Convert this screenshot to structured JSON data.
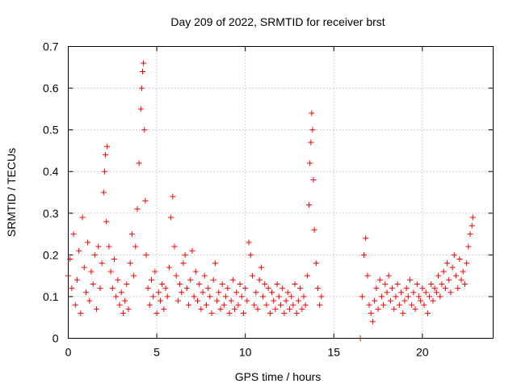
{
  "chart_data": {
    "type": "scatter",
    "title": "Day 209 of 2022, SRMTID for receiver brst",
    "xlabel": "GPS time / hours",
    "ylabel": "SRMTID / TECUs",
    "xlim": [
      0,
      24
    ],
    "ylim": [
      0,
      0.7
    ],
    "x_ticks": [
      0,
      5,
      10,
      15,
      20
    ],
    "x_tick_labels": [
      "0",
      "5",
      "10",
      "15",
      "20"
    ],
    "y_ticks": [
      0,
      0.1,
      0.2,
      0.3,
      0.4,
      0.5,
      0.6,
      0.7
    ],
    "y_tick_labels": [
      "0",
      "0.1",
      "0.2",
      "0.3",
      "0.4",
      "0.5",
      "0.6",
      "0.7"
    ],
    "grid": true,
    "marker": "plus",
    "color": "#ff0000",
    "series": [
      {
        "name": "SRMTID",
        "x": [
          0.0,
          0.1,
          0.2,
          0.3,
          0.4,
          0.5,
          0.6,
          0.7,
          0.8,
          0.9,
          1.0,
          1.1,
          1.2,
          1.3,
          1.4,
          1.5,
          1.6,
          1.7,
          1.8,
          1.9,
          2.0,
          2.05,
          2.1,
          2.15,
          2.2,
          2.3,
          2.4,
          2.5,
          2.6,
          2.7,
          2.8,
          2.9,
          3.0,
          3.1,
          3.2,
          3.3,
          3.4,
          3.5,
          3.6,
          3.7,
          3.8,
          3.9,
          4.0,
          4.1,
          4.15,
          4.2,
          4.25,
          4.3,
          4.35,
          4.4,
          4.5,
          4.6,
          4.7,
          4.8,
          4.9,
          5.0,
          5.1,
          5.2,
          5.3,
          5.4,
          5.5,
          5.6,
          5.7,
          5.8,
          5.9,
          6.0,
          6.1,
          6.2,
          6.3,
          6.4,
          6.5,
          6.6,
          6.7,
          6.8,
          6.9,
          7.0,
          7.1,
          7.2,
          7.3,
          7.4,
          7.5,
          7.6,
          7.7,
          7.8,
          7.9,
          8.0,
          8.1,
          8.2,
          8.3,
          8.4,
          8.5,
          8.6,
          8.7,
          8.8,
          8.9,
          9.0,
          9.1,
          9.2,
          9.3,
          9.4,
          9.5,
          9.6,
          9.7,
          9.8,
          9.9,
          10.0,
          10.1,
          10.2,
          10.3,
          10.4,
          10.5,
          10.6,
          10.7,
          10.8,
          10.9,
          11.0,
          11.1,
          11.2,
          11.3,
          11.4,
          11.5,
          11.6,
          11.7,
          11.8,
          11.9,
          12.0,
          12.1,
          12.2,
          12.3,
          12.4,
          12.5,
          12.6,
          12.7,
          12.8,
          12.9,
          13.0,
          13.1,
          13.2,
          13.3,
          13.4,
          13.5,
          13.6,
          13.65,
          13.7,
          13.75,
          13.8,
          13.85,
          13.9,
          14.0,
          14.1,
          14.2,
          14.3,
          16.5,
          16.6,
          16.7,
          16.8,
          16.9,
          17.0,
          17.1,
          17.2,
          17.3,
          17.4,
          17.5,
          17.6,
          17.7,
          17.8,
          17.9,
          18.0,
          18.1,
          18.2,
          18.3,
          18.4,
          18.5,
          18.6,
          18.7,
          18.8,
          18.9,
          19.0,
          19.1,
          19.2,
          19.3,
          19.4,
          19.5,
          19.6,
          19.7,
          19.8,
          19.9,
          20.0,
          20.1,
          20.2,
          20.3,
          20.4,
          20.5,
          20.6,
          20.7,
          20.8,
          20.9,
          21.0,
          21.1,
          21.2,
          21.3,
          21.4,
          21.5,
          21.6,
          21.7,
          21.8,
          21.9,
          22.0,
          22.1,
          22.2,
          22.3,
          22.4,
          22.5,
          22.6,
          22.7,
          22.8,
          22.85
        ],
        "y": [
          0.15,
          0.19,
          0.12,
          0.25,
          0.08,
          0.14,
          0.21,
          0.06,
          0.29,
          0.17,
          0.11,
          0.23,
          0.09,
          0.16,
          0.13,
          0.2,
          0.07,
          0.22,
          0.12,
          0.18,
          0.35,
          0.4,
          0.44,
          0.28,
          0.46,
          0.22,
          0.16,
          0.12,
          0.19,
          0.1,
          0.14,
          0.08,
          0.11,
          0.06,
          0.09,
          0.13,
          0.07,
          0.18,
          0.25,
          0.15,
          0.22,
          0.31,
          0.42,
          0.55,
          0.6,
          0.64,
          0.66,
          0.5,
          0.33,
          0.2,
          0.12,
          0.08,
          0.14,
          0.1,
          0.16,
          0.06,
          0.11,
          0.09,
          0.13,
          0.07,
          0.12,
          0.1,
          0.17,
          0.29,
          0.34,
          0.22,
          0.15,
          0.09,
          0.13,
          0.11,
          0.18,
          0.2,
          0.12,
          0.08,
          0.14,
          0.21,
          0.1,
          0.16,
          0.09,
          0.13,
          0.07,
          0.11,
          0.15,
          0.08,
          0.12,
          0.1,
          0.06,
          0.14,
          0.18,
          0.09,
          0.11,
          0.07,
          0.13,
          0.08,
          0.1,
          0.12,
          0.06,
          0.09,
          0.14,
          0.07,
          0.11,
          0.08,
          0.13,
          0.1,
          0.06,
          0.12,
          0.09,
          0.23,
          0.2,
          0.15,
          0.08,
          0.11,
          0.07,
          0.14,
          0.17,
          0.1,
          0.13,
          0.08,
          0.12,
          0.06,
          0.11,
          0.09,
          0.07,
          0.13,
          0.1,
          0.08,
          0.12,
          0.06,
          0.09,
          0.11,
          0.07,
          0.1,
          0.08,
          0.13,
          0.06,
          0.09,
          0.12,
          0.07,
          0.1,
          0.08,
          0.15,
          0.32,
          0.42,
          0.47,
          0.54,
          0.5,
          0.38,
          0.26,
          0.18,
          0.12,
          0.08,
          0.1,
          0.0,
          0.1,
          0.2,
          0.24,
          0.15,
          0.08,
          0.06,
          0.04,
          0.09,
          0.12,
          0.07,
          0.14,
          0.1,
          0.08,
          0.13,
          0.11,
          0.15,
          0.09,
          0.12,
          0.07,
          0.1,
          0.13,
          0.08,
          0.11,
          0.06,
          0.09,
          0.12,
          0.1,
          0.14,
          0.08,
          0.11,
          0.07,
          0.13,
          0.1,
          0.09,
          0.12,
          0.08,
          0.11,
          0.06,
          0.1,
          0.13,
          0.09,
          0.12,
          0.11,
          0.15,
          0.1,
          0.13,
          0.16,
          0.12,
          0.18,
          0.14,
          0.11,
          0.17,
          0.2,
          0.15,
          0.12,
          0.19,
          0.14,
          0.16,
          0.13,
          0.18,
          0.22,
          0.25,
          0.27,
          0.29
        ]
      }
    ]
  }
}
